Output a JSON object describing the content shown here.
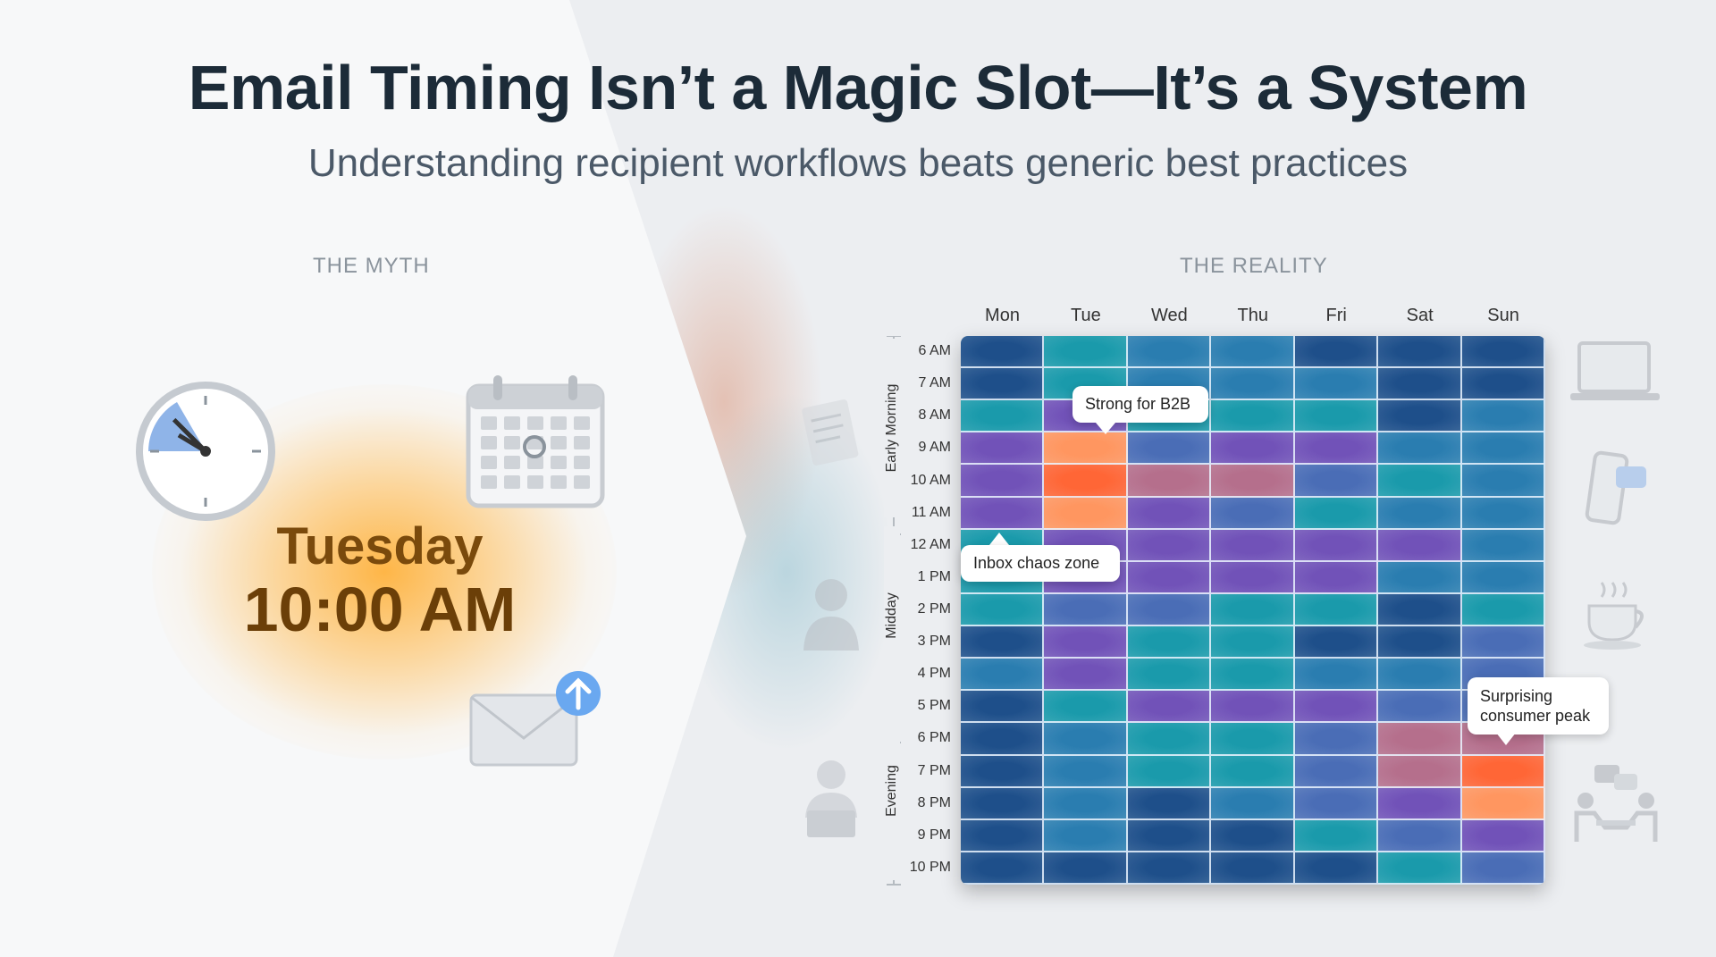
{
  "title": "Email Timing Isn’t a Magic Slot—It’s a System",
  "subtitle": "Understanding recipient workflows beats generic best practices",
  "myth": {
    "label": "THE MYTH",
    "day": "Tuesday",
    "time": "10:00 AM",
    "icons": [
      "clock-icon",
      "calendar-icon",
      "envelope-send-icon"
    ]
  },
  "reality": {
    "label": "THE REALITY"
  },
  "chart_data": {
    "type": "heatmap",
    "columns": [
      "Mon",
      "Tue",
      "Wed",
      "Thu",
      "Fri",
      "Sat",
      "Sun"
    ],
    "rows": [
      "6 AM",
      "7 AM",
      "8 AM",
      "9 AM",
      "10 AM",
      "11 AM",
      "12 AM",
      "1 PM",
      "2 PM",
      "3 PM",
      "4 PM",
      "5 PM",
      "6 PM",
      "7 PM",
      "8 PM",
      "9 PM",
      "10 PM"
    ],
    "row_groups": [
      "Early Morning",
      "Midday",
      "Evening"
    ],
    "palette": [
      "#1e4f8a",
      "#2a7db0",
      "#1a9aab",
      "#4a6db6",
      "#7152b8",
      "#b56f8c",
      "#ff9660",
      "#ff6636"
    ],
    "levels": [
      [
        0,
        2,
        1,
        1,
        0,
        0,
        0
      ],
      [
        0,
        2,
        1,
        1,
        1,
        0,
        0
      ],
      [
        2,
        4,
        2,
        2,
        2,
        0,
        1
      ],
      [
        4,
        6,
        3,
        4,
        4,
        1,
        1
      ],
      [
        4,
        7,
        5,
        5,
        3,
        2,
        1
      ],
      [
        4,
        6,
        4,
        3,
        2,
        1,
        1
      ],
      [
        2,
        4,
        4,
        4,
        4,
        4,
        1
      ],
      [
        2,
        4,
        4,
        4,
        4,
        1,
        1
      ],
      [
        2,
        3,
        3,
        2,
        2,
        0,
        2
      ],
      [
        0,
        4,
        2,
        2,
        0,
        0,
        3
      ],
      [
        1,
        4,
        2,
        2,
        1,
        1,
        3
      ],
      [
        0,
        2,
        4,
        4,
        4,
        3,
        3
      ],
      [
        0,
        1,
        2,
        2,
        3,
        5,
        5
      ],
      [
        0,
        1,
        2,
        2,
        3,
        5,
        7
      ],
      [
        0,
        1,
        0,
        1,
        3,
        4,
        6
      ],
      [
        0,
        1,
        0,
        0,
        2,
        3,
        4
      ],
      [
        0,
        0,
        0,
        0,
        0,
        2,
        3
      ]
    ],
    "annotations": [
      {
        "text": "Strong for B2B",
        "day": "Tue",
        "hour": "9 AM"
      },
      {
        "text": "Inbox chaos zone",
        "day": "Mon",
        "hour": "11 AM"
      },
      {
        "text": "Surprising consumer peak",
        "day": "Sun",
        "hour": "7 PM"
      }
    ]
  },
  "side_icons": {
    "left": [
      "document-icon",
      "person-icon",
      "person-laptop-icon"
    ],
    "right": [
      "laptop-icon",
      "phone-chat-icon",
      "coffee-cup-icon",
      "meeting-icon"
    ]
  }
}
